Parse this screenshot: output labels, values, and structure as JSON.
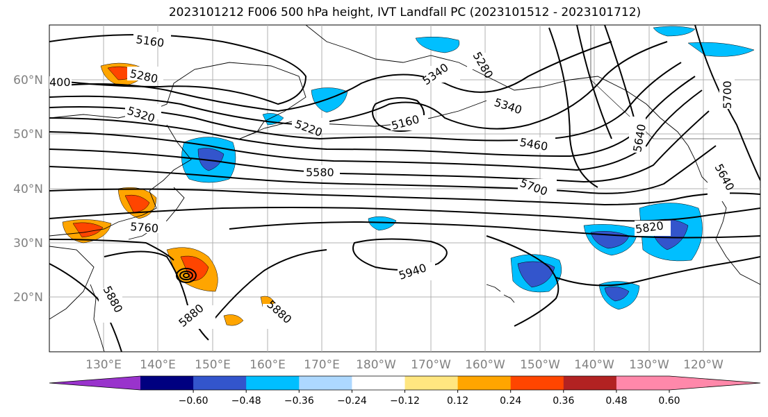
{
  "title": "2023101212 F006 500 hPa height, IVT Landfall PC (2023101512 - 2023101712)",
  "lat_labels": [
    "60°N",
    "50°N",
    "40°N",
    "30°N",
    "20°N"
  ],
  "lon_labels": [
    "130°E",
    "140°E",
    "150°E",
    "160°E",
    "170°E",
    "180°W",
    "170°W",
    "160°W",
    "150°W",
    "140°W",
    "130°W",
    "120°W"
  ],
  "contour_labels": [
    "5160",
    "5280",
    "400",
    "5320",
    "5220",
    "5340",
    "5280",
    "5160",
    "5340",
    "5460",
    "5580",
    "5640",
    "5700",
    "5700",
    "5640",
    "5760",
    "5820",
    "5940",
    "5880",
    "5880",
    "5880"
  ],
  "colorbar": {
    "ticks": [
      "−0.60",
      "−0.48",
      "−0.36",
      "−0.24",
      "−0.12",
      "0.12",
      "0.24",
      "0.36",
      "0.48",
      "0.60"
    ],
    "colors": [
      "#9933cc",
      "#000080",
      "#3355cc",
      "#00bfff",
      "#add8ff",
      "#ffffff",
      "#ffe680",
      "#ffa500",
      "#ff4500",
      "#b22222",
      "#ff88aa",
      "#ff88aa"
    ]
  }
}
